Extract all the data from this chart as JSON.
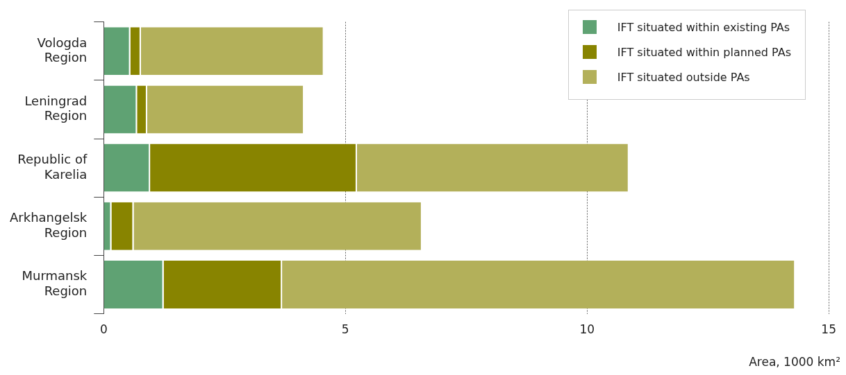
{
  "chart_data": {
    "type": "bar",
    "orientation": "horizontal",
    "stacked": true,
    "categories": [
      "Vologda Region",
      "Leningrad Region",
      "Republic of Karelia",
      "Arkhangelsk Region",
      "Murmansk Region"
    ],
    "series": [
      {
        "name": "IFT situated within existing PAs",
        "color": "#5fa273",
        "values": [
          0.55,
          0.69,
          0.96,
          0.16,
          1.24
        ]
      },
      {
        "name": "IFT situated within planned PAs",
        "color": "#888400",
        "values": [
          0.22,
          0.21,
          4.28,
          0.46,
          2.45
        ]
      },
      {
        "name": "IFT situated outside PAs",
        "color": "#b3b05a",
        "values": [
          3.79,
          3.25,
          5.63,
          5.97,
          10.62
        ]
      }
    ],
    "xlim": [
      0,
      15
    ],
    "xticks": [
      0,
      5,
      10,
      15
    ],
    "xlabel": "Area, 1000 km²",
    "grid": "x",
    "legend": "top right"
  }
}
